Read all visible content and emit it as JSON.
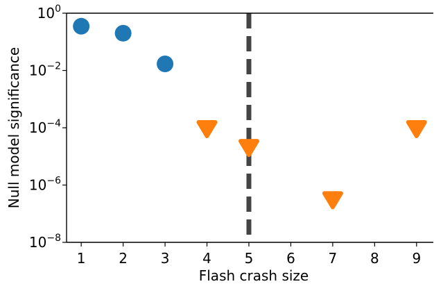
{
  "chart_data": {
    "type": "scatter",
    "xlabel": "Flash crash size",
    "ylabel": "Null model significance",
    "x_ticks": [
      1,
      2,
      3,
      4,
      5,
      6,
      7,
      8,
      9
    ],
    "xlim": [
      0.65,
      9.4
    ],
    "y_scale": "log",
    "ylim": [
      1e-08,
      1
    ],
    "y_ticks": [
      {
        "base": "10",
        "exp": "0",
        "value": 1
      },
      {
        "base": "10",
        "exp": "−2",
        "value": 0.01
      },
      {
        "base": "10",
        "exp": "−4",
        "value": 0.0001
      },
      {
        "base": "10",
        "exp": "−6",
        "value": 1e-06
      },
      {
        "base": "10",
        "exp": "−8",
        "value": 1e-08
      }
    ],
    "grid": false,
    "spines": [
      "left",
      "bottom",
      "top"
    ],
    "vertical_line": {
      "x": 5,
      "style": "dashed",
      "color": "#444444"
    },
    "series": [
      {
        "marker": "circle",
        "color": "#1f77b4",
        "points": [
          {
            "x": 1,
            "y": 0.35
          },
          {
            "x": 2,
            "y": 0.2
          },
          {
            "x": 3,
            "y": 0.017
          }
        ]
      },
      {
        "marker": "triangle-down",
        "color": "#ff7f0e",
        "points": [
          {
            "x": 4,
            "y": 0.0001
          },
          {
            "x": 5,
            "y": 2.2e-05
          },
          {
            "x": 7,
            "y": 3.3e-07
          },
          {
            "x": 9,
            "y": 0.0001
          }
        ]
      }
    ]
  }
}
